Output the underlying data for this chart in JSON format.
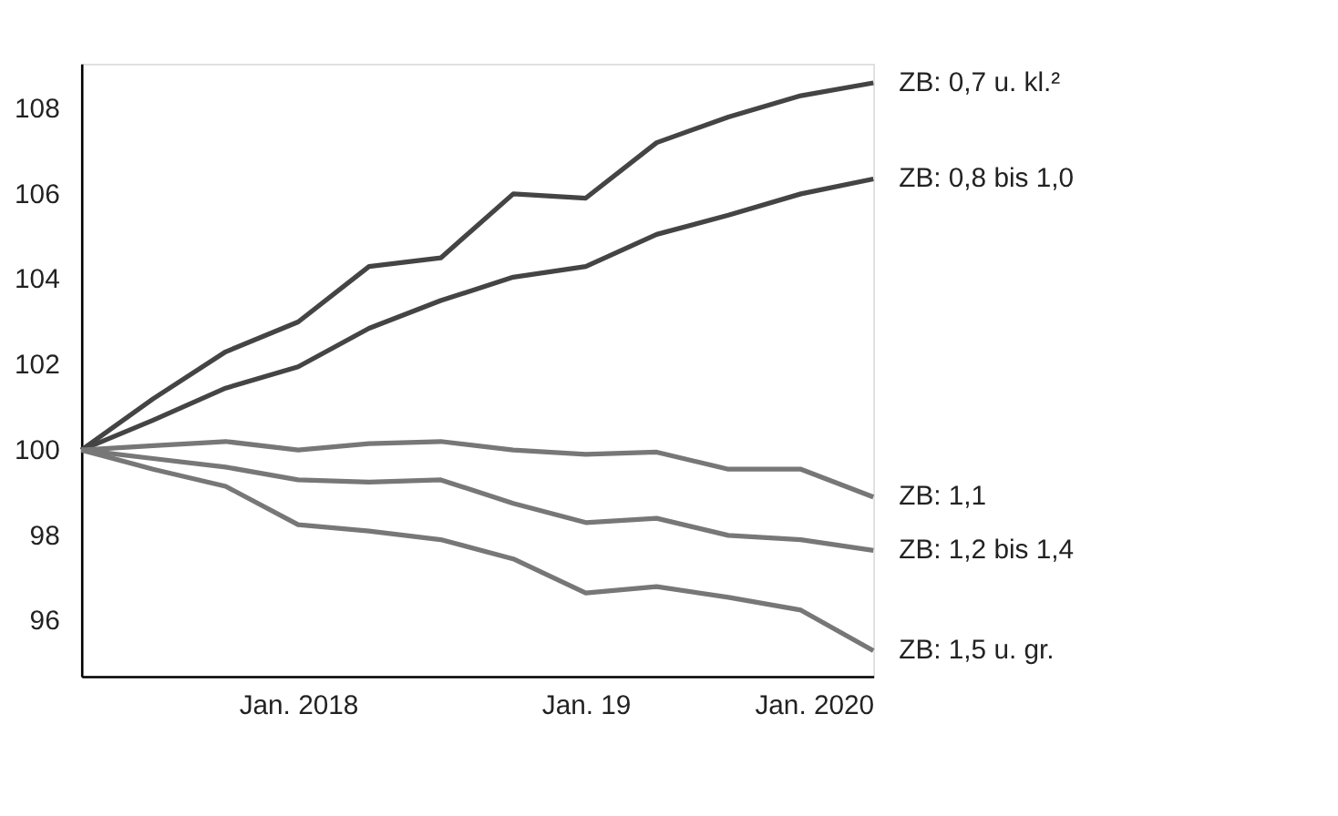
{
  "chart_data": {
    "type": "line",
    "x": [
      "2017-04",
      "2017-07",
      "2017-10",
      "2018-01",
      "2018-04",
      "2018-07",
      "2018-10",
      "2019-01",
      "2019-04",
      "2019-07",
      "2019-10",
      "2020-01"
    ],
    "xlim": [
      "2017-04",
      "2020-01"
    ],
    "xticks": [
      {
        "value": "2018-01",
        "label": "Jan. 2018"
      },
      {
        "value": "2019-01",
        "label": "Jan. 19"
      },
      {
        "value": "2020-01",
        "label": "Jan. 2020"
      }
    ],
    "ylim": [
      94.7,
      109.05
    ],
    "yticks": [
      96,
      98,
      100,
      102,
      104,
      106,
      108
    ],
    "grid": false,
    "legend": false,
    "marker": "none",
    "line_style": "solid",
    "series": [
      {
        "name": "ZB: 0,7 u. kl.²",
        "color": "#444444",
        "values": [
          100,
          101.2,
          102.3,
          103.0,
          104.3,
          104.5,
          106.0,
          105.9,
          107.2,
          107.8,
          108.3,
          108.6
        ]
      },
      {
        "name": "ZB: 0,8 bis 1,0",
        "color": "#444444",
        "values": [
          100,
          100.7,
          101.45,
          101.95,
          102.85,
          103.5,
          104.05,
          104.3,
          105.05,
          105.5,
          106.0,
          106.35
        ]
      },
      {
        "name": "ZB: 1,1",
        "color": "#777777",
        "values": [
          100,
          100.1,
          100.2,
          100.0,
          100.15,
          100.2,
          100.0,
          99.9,
          99.95,
          99.55,
          99.55,
          98.9
        ]
      },
      {
        "name": "ZB: 1,2 bis 1,4",
        "color": "#777777",
        "values": [
          100,
          99.8,
          99.6,
          99.3,
          99.25,
          99.3,
          98.75,
          98.3,
          98.4,
          98.0,
          97.9,
          97.65
        ]
      },
      {
        "name": "ZB: 1,5 u. gr.",
        "color": "#777777",
        "values": [
          100,
          99.55,
          99.15,
          98.25,
          98.1,
          97.9,
          97.45,
          96.65,
          96.8,
          96.55,
          96.25,
          95.3
        ]
      }
    ]
  }
}
